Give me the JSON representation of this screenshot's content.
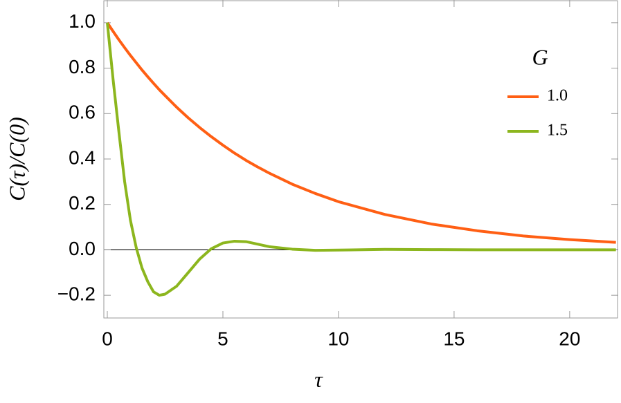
{
  "chart_data": {
    "type": "line",
    "xlabel": "τ",
    "ylabel": "C(τ)/C(0)",
    "legend_title": "G",
    "legend_position": "upper right",
    "x": [
      0,
      0.25,
      0.5,
      0.75,
      1,
      1.25,
      1.5,
      1.75,
      2,
      2.25,
      2.5,
      3,
      3.5,
      4,
      4.5,
      5,
      5.5,
      6,
      6.5,
      7,
      8,
      9,
      10,
      12,
      14,
      16,
      18,
      20,
      22
    ],
    "series": [
      {
        "name": "1.0",
        "color": "#ff5f14",
        "values": [
          1,
          0.962,
          0.925,
          0.89,
          0.856,
          0.824,
          0.792,
          0.762,
          0.733,
          0.705,
          0.679,
          0.628,
          0.581,
          0.538,
          0.498,
          0.461,
          0.426,
          0.394,
          0.365,
          0.338,
          0.289,
          0.248,
          0.212,
          0.156,
          0.114,
          0.084,
          0.061,
          0.045,
          0.033
        ]
      },
      {
        "name": "1.5",
        "color": "#8cb61e",
        "values": [
          1,
          0.75,
          0.52,
          0.3,
          0.13,
          0.01,
          -0.08,
          -0.14,
          -0.185,
          -0.2,
          -0.195,
          -0.16,
          -0.1,
          -0.04,
          0.005,
          0.03,
          0.038,
          0.036,
          0.025,
          0.014,
          0.003,
          -0.002,
          -0.001,
          0.002,
          0.001,
          0,
          0,
          0,
          0
        ]
      }
    ],
    "xlim": [
      -0.15,
      22.1
    ],
    "ylim": [
      -0.3,
      1.1
    ],
    "xticks": [
      0,
      5,
      10,
      15,
      20
    ],
    "yticks": [
      {
        "value": -0.2,
        "label": "−0.2"
      },
      {
        "value": 0,
        "label": "0.0"
      },
      {
        "value": 0.2,
        "label": "0.2"
      },
      {
        "value": 0.4,
        "label": "0.4"
      },
      {
        "value": 0.6,
        "label": "0.6"
      },
      {
        "value": 0.8,
        "label": "0.8"
      },
      {
        "value": 1,
        "label": "1.0"
      }
    ]
  }
}
